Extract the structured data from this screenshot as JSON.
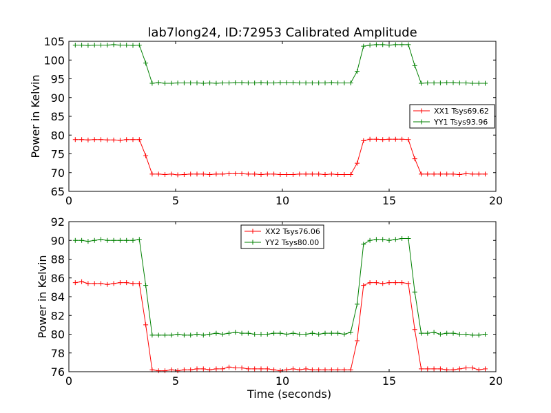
{
  "title": "lab7long24, ID:72953 Calibrated Amplitude",
  "chart_data": [
    {
      "type": "line",
      "title": "lab7long24, ID:72953 Calibrated Amplitude",
      "xlabel": "",
      "ylabel": "Power in Kelvin",
      "xlim": [
        0,
        20
      ],
      "ylim": [
        65,
        105
      ],
      "xticks": [
        0,
        5,
        10,
        15,
        20
      ],
      "yticks": [
        65,
        70,
        75,
        80,
        85,
        90,
        95,
        100,
        105
      ],
      "grid": false,
      "legend_position": "center-right",
      "x": [
        0.3,
        0.6,
        0.9,
        1.2,
        1.5,
        1.8,
        2.1,
        2.4,
        2.7,
        3.0,
        3.3,
        3.6,
        3.9,
        4.2,
        4.5,
        4.8,
        5.1,
        5.4,
        5.7,
        6.0,
        6.3,
        6.6,
        6.9,
        7.2,
        7.5,
        7.8,
        8.1,
        8.4,
        8.7,
        9.0,
        9.3,
        9.6,
        9.9,
        10.2,
        10.5,
        10.8,
        11.1,
        11.4,
        11.7,
        12.0,
        12.3,
        12.6,
        12.9,
        13.2,
        13.5,
        13.8,
        14.1,
        14.4,
        14.7,
        15.0,
        15.3,
        15.6,
        15.9,
        16.2,
        16.5,
        16.8,
        17.1,
        17.4,
        17.7,
        18.0,
        18.3,
        18.6,
        18.9,
        19.2,
        19.5
      ],
      "series": [
        {
          "name": "XX1 Tsys69.62",
          "color": "#ff0000",
          "values": [
            78.8,
            78.8,
            78.7,
            78.8,
            78.8,
            78.7,
            78.7,
            78.6,
            78.8,
            78.8,
            78.8,
            74.5,
            69.6,
            69.6,
            69.5,
            69.6,
            69.4,
            69.5,
            69.6,
            69.6,
            69.6,
            69.5,
            69.6,
            69.6,
            69.7,
            69.7,
            69.7,
            69.6,
            69.6,
            69.5,
            69.6,
            69.6,
            69.5,
            69.5,
            69.5,
            69.6,
            69.6,
            69.6,
            69.6,
            69.5,
            69.6,
            69.5,
            69.5,
            69.5,
            72.5,
            78.5,
            78.9,
            78.9,
            78.8,
            78.9,
            78.9,
            78.9,
            78.8,
            73.7,
            69.6,
            69.6,
            69.6,
            69.6,
            69.6,
            69.6,
            69.5,
            69.7,
            69.6,
            69.6,
            69.6
          ]
        },
        {
          "name": "YY1 Tsys93.96",
          "color": "#008000",
          "values": [
            104.0,
            104.0,
            103.9,
            104.0,
            104.0,
            104.0,
            104.1,
            104.0,
            104.0,
            103.9,
            104.0,
            99.2,
            93.8,
            94.0,
            93.8,
            93.8,
            93.9,
            93.9,
            93.9,
            93.9,
            93.8,
            93.9,
            93.8,
            93.9,
            93.9,
            94.0,
            94.0,
            93.9,
            93.9,
            94.0,
            93.9,
            93.9,
            94.0,
            94.0,
            94.0,
            93.9,
            93.9,
            93.9,
            93.9,
            93.9,
            94.0,
            93.9,
            93.9,
            93.9,
            97.0,
            103.7,
            104.0,
            104.1,
            104.1,
            104.0,
            104.1,
            104.1,
            104.1,
            98.5,
            93.8,
            93.9,
            93.9,
            93.9,
            94.0,
            94.0,
            93.9,
            93.9,
            93.8,
            93.8,
            93.8
          ]
        }
      ]
    },
    {
      "type": "line",
      "title": "",
      "xlabel": "Time (seconds)",
      "ylabel": "Power in Kelvin",
      "xlim": [
        0,
        20
      ],
      "ylim": [
        76,
        92
      ],
      "xticks": [
        0,
        5,
        10,
        15,
        20
      ],
      "yticks": [
        76,
        78,
        80,
        82,
        84,
        86,
        88,
        90,
        92
      ],
      "grid": false,
      "legend_position": "top-center",
      "x": [
        0.3,
        0.6,
        0.9,
        1.2,
        1.5,
        1.8,
        2.1,
        2.4,
        2.7,
        3.0,
        3.3,
        3.6,
        3.9,
        4.2,
        4.5,
        4.8,
        5.1,
        5.4,
        5.7,
        6.0,
        6.3,
        6.6,
        6.9,
        7.2,
        7.5,
        7.8,
        8.1,
        8.4,
        8.7,
        9.0,
        9.3,
        9.6,
        9.9,
        10.2,
        10.5,
        10.8,
        11.1,
        11.4,
        11.7,
        12.0,
        12.3,
        12.6,
        12.9,
        13.2,
        13.5,
        13.8,
        14.1,
        14.4,
        14.7,
        15.0,
        15.3,
        15.6,
        15.9,
        16.2,
        16.5,
        16.8,
        17.1,
        17.4,
        17.7,
        18.0,
        18.3,
        18.6,
        18.9,
        19.2,
        19.5
      ],
      "series": [
        {
          "name": "XX2 Tsys76.06",
          "color": "#ff0000",
          "values": [
            85.5,
            85.6,
            85.4,
            85.4,
            85.4,
            85.3,
            85.4,
            85.5,
            85.5,
            85.4,
            85.4,
            81.0,
            76.2,
            76.1,
            76.1,
            76.2,
            76.1,
            76.2,
            76.2,
            76.3,
            76.3,
            76.2,
            76.3,
            76.3,
            76.5,
            76.4,
            76.4,
            76.3,
            76.3,
            76.3,
            76.3,
            76.2,
            76.1,
            76.2,
            76.3,
            76.2,
            76.3,
            76.2,
            76.2,
            76.2,
            76.2,
            76.2,
            76.2,
            76.2,
            79.3,
            85.2,
            85.5,
            85.5,
            85.4,
            85.5,
            85.5,
            85.5,
            85.4,
            80.5,
            76.3,
            76.3,
            76.3,
            76.3,
            76.2,
            76.2,
            76.3,
            76.4,
            76.4,
            76.2,
            76.3
          ]
        },
        {
          "name": "YY2 Tsys80.00",
          "color": "#008000",
          "values": [
            90.0,
            90.0,
            89.9,
            90.0,
            90.1,
            90.0,
            90.0,
            90.0,
            90.0,
            90.0,
            90.1,
            85.2,
            79.9,
            79.9,
            79.9,
            79.9,
            80.0,
            79.9,
            79.9,
            80.0,
            79.9,
            80.0,
            80.1,
            80.0,
            80.1,
            80.2,
            80.1,
            80.1,
            80.0,
            80.0,
            80.0,
            80.1,
            80.1,
            80.0,
            80.1,
            80.0,
            80.0,
            80.1,
            80.0,
            80.1,
            80.1,
            80.1,
            80.0,
            80.2,
            83.2,
            89.6,
            90.0,
            90.1,
            90.1,
            90.0,
            90.1,
            90.2,
            90.2,
            84.5,
            80.1,
            80.1,
            80.2,
            80.0,
            80.1,
            80.1,
            80.0,
            80.0,
            79.9,
            79.9,
            80.0
          ]
        }
      ]
    }
  ]
}
